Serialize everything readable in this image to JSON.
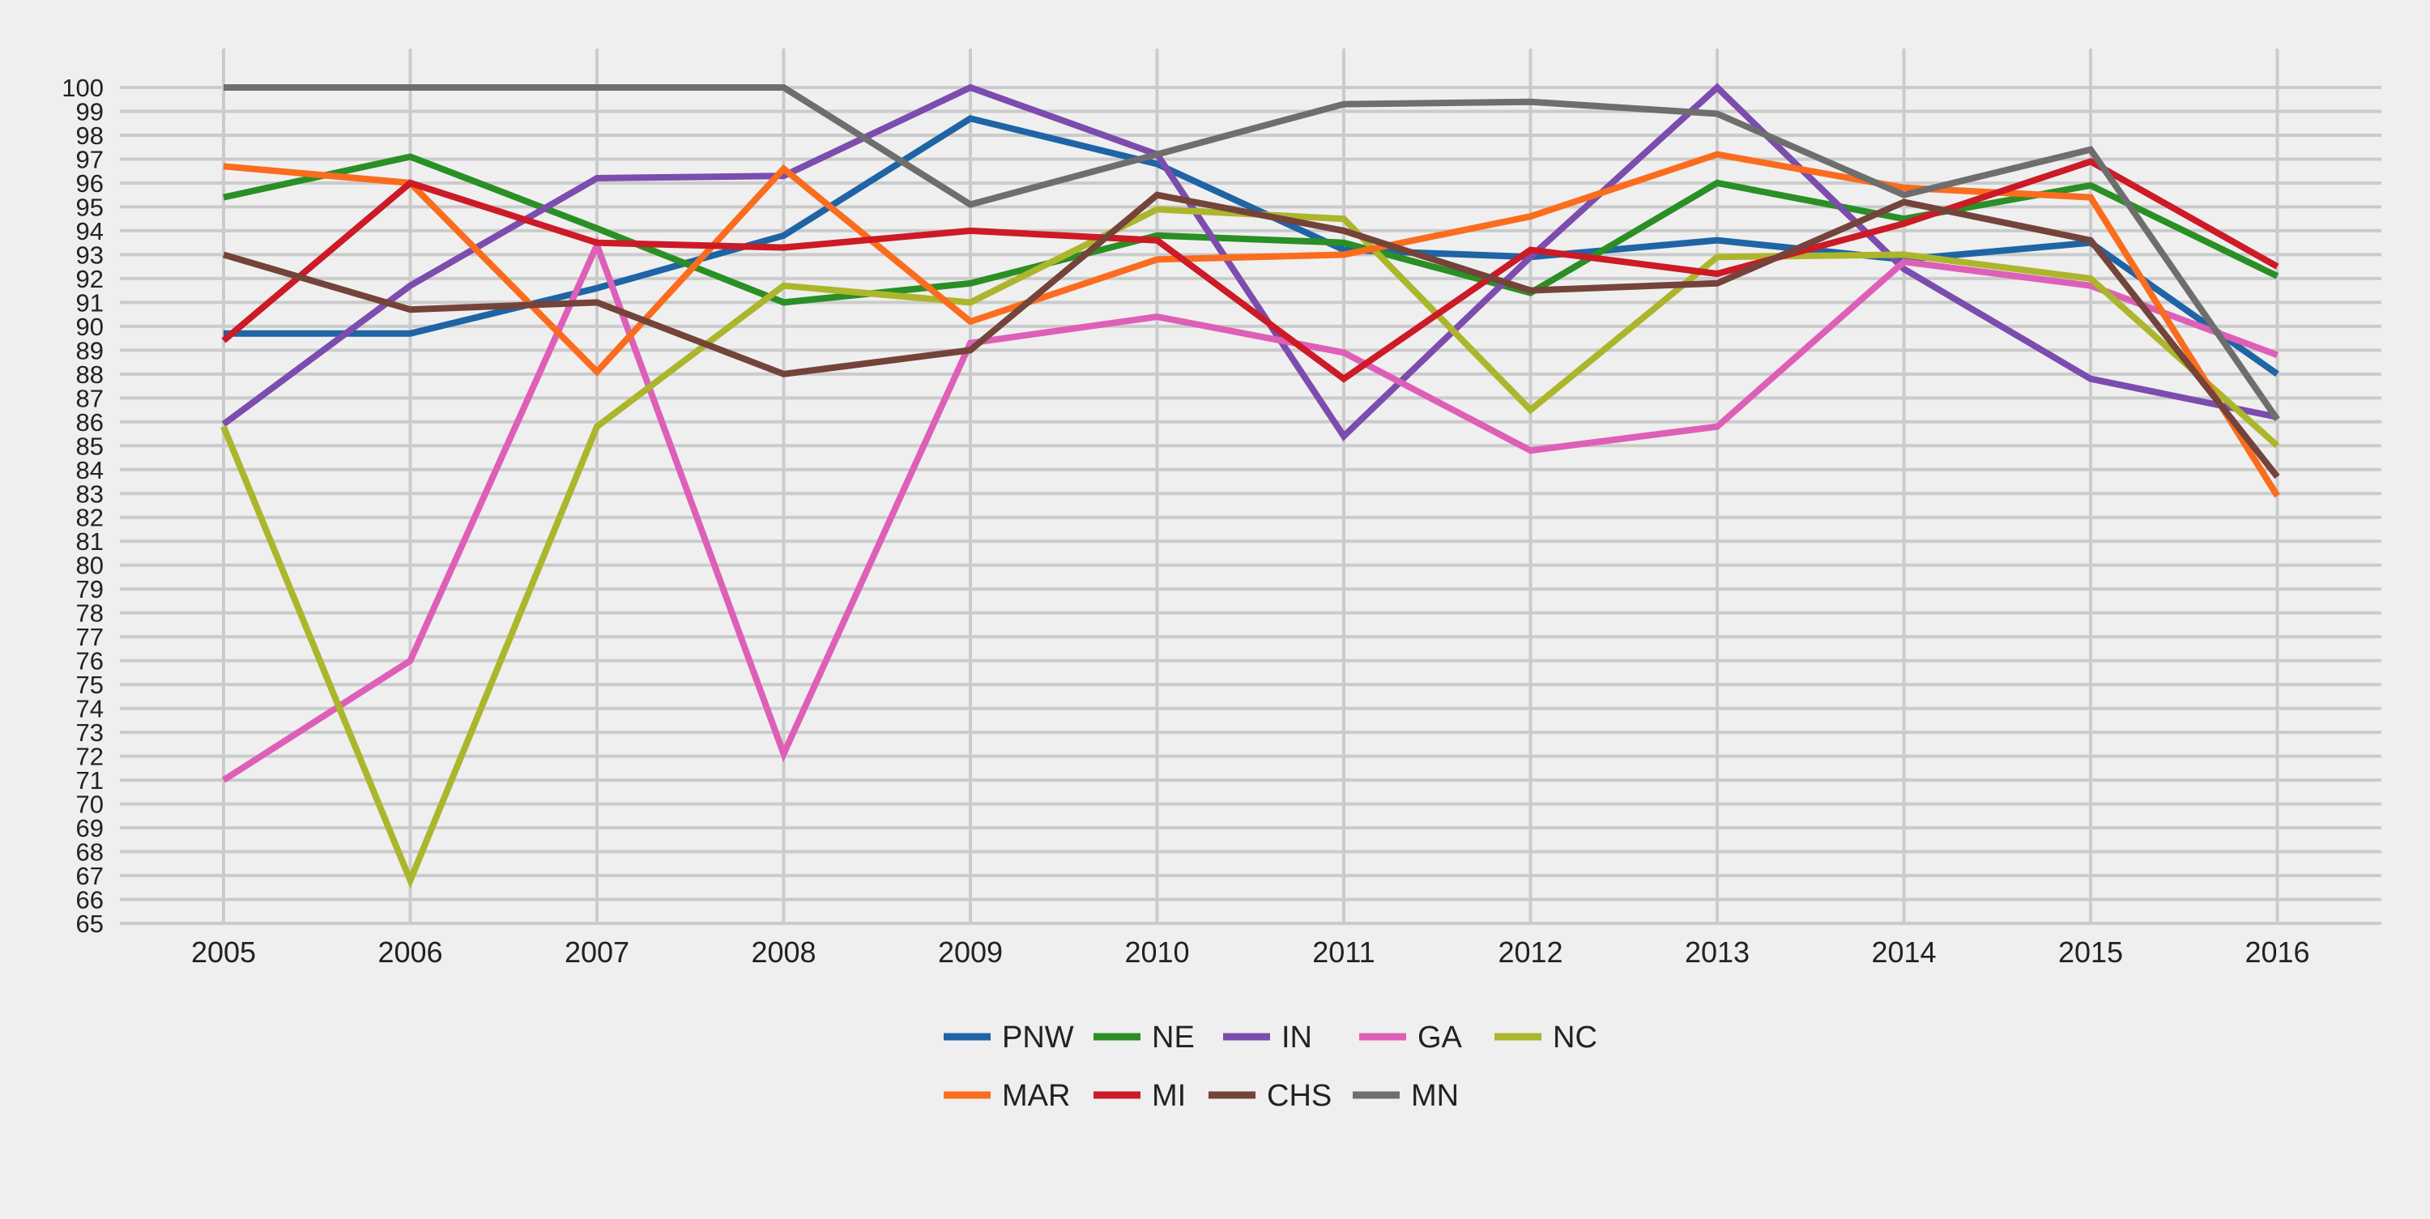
{
  "chart_data": {
    "type": "line",
    "title": "",
    "xlabel": "",
    "ylabel": "",
    "categories": [
      "2005",
      "2006",
      "2007",
      "2008",
      "2009",
      "2010",
      "2011",
      "2012",
      "2013",
      "2014",
      "2015",
      "2016"
    ],
    "yticks": [
      "65",
      "66",
      "67",
      "68",
      "69",
      "70",
      "71",
      "72",
      "73",
      "74",
      "75",
      "76",
      "77",
      "78",
      "79",
      "80",
      "81",
      "82",
      "83",
      "84",
      "85",
      "86",
      "87",
      "88",
      "89",
      "90",
      "91",
      "92",
      "93",
      "94",
      "95",
      "96",
      "97",
      "98",
      "99",
      "100"
    ],
    "ylim": [
      65,
      100
    ],
    "grid": true,
    "legend_position": "bottom",
    "series": [
      {
        "name": "PNW",
        "color": "#1f64a5",
        "values": [
          89.7,
          89.7,
          91.6,
          93.8,
          98.7,
          96.8,
          93.2,
          92.9,
          93.6,
          92.8,
          93.5,
          88.0
        ]
      },
      {
        "name": "NE",
        "color": "#2a8f24",
        "values": [
          95.4,
          97.1,
          94.1,
          91.0,
          91.8,
          93.8,
          93.5,
          91.4,
          96.0,
          94.5,
          95.9,
          92.1
        ]
      },
      {
        "name": "IN",
        "color": "#7c4cae",
        "values": [
          85.9,
          91.7,
          96.2,
          96.3,
          100.0,
          97.2,
          85.4,
          92.9,
          100.0,
          92.4,
          87.8,
          86.2
        ]
      },
      {
        "name": "GA",
        "color": "#de5fb8",
        "values": [
          71.0,
          76.0,
          93.4,
          72.1,
          89.3,
          90.4,
          88.9,
          84.8,
          85.8,
          92.7,
          91.7,
          88.8
        ]
      },
      {
        "name": "NC",
        "color": "#acb62c",
        "values": [
          85.8,
          66.8,
          85.8,
          91.7,
          91.0,
          94.9,
          94.5,
          86.5,
          92.9,
          93.0,
          92.0,
          85.0
        ]
      },
      {
        "name": "MAR",
        "color": "#fa6c1e",
        "values": [
          96.7,
          96.0,
          88.1,
          96.6,
          90.2,
          92.8,
          93.0,
          94.6,
          97.2,
          95.8,
          95.4,
          82.9
        ]
      },
      {
        "name": "MI",
        "color": "#cc1a26",
        "values": [
          89.4,
          96.0,
          93.5,
          93.3,
          94.0,
          93.6,
          87.8,
          93.2,
          92.2,
          94.3,
          96.9,
          92.5
        ]
      },
      {
        "name": "CHS",
        "color": "#74433a",
        "values": [
          93.0,
          90.7,
          91.0,
          88.0,
          89.0,
          95.5,
          94.0,
          91.5,
          91.8,
          95.2,
          93.6,
          83.7
        ]
      },
      {
        "name": "MN",
        "color": "#6e6e6e",
        "values": [
          100.0,
          100.0,
          100.0,
          100.0,
          95.1,
          97.2,
          99.3,
          99.4,
          98.9,
          95.5,
          97.4,
          86.1
        ]
      }
    ]
  }
}
